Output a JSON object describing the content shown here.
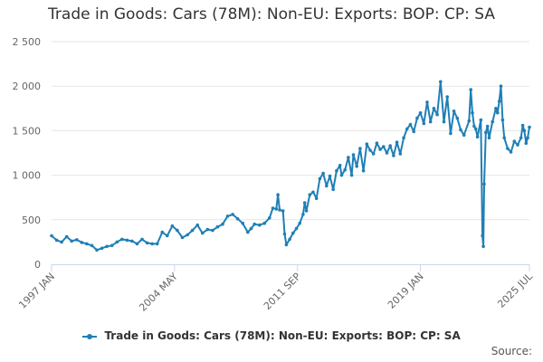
{
  "chart_data": {
    "type": "line",
    "title": "Trade in Goods: Cars (78M): Non-EU: Exports: BOP: CP: SA",
    "xlabel": "",
    "ylabel": "",
    "ylim": [
      0,
      2500
    ],
    "y_ticks": [
      0,
      500,
      1000,
      1500,
      2000,
      2500
    ],
    "y_tick_labels": [
      "0",
      "500",
      "1 000",
      "1 500",
      "2 000",
      "2 500"
    ],
    "x_range": [
      1997.0,
      2025.5
    ],
    "x_ticks": [
      {
        "pos": 1997.0,
        "label": "1997 JAN"
      },
      {
        "pos": 2004.33,
        "label": "2004 MAY"
      },
      {
        "pos": 2011.67,
        "label": "2011 SEP"
      },
      {
        "pos": 2019.0,
        "label": "2019 JAN"
      },
      {
        "pos": 2025.5,
        "label": "2025 JUL"
      }
    ],
    "grid": true,
    "legend_position": "bottom",
    "series": [
      {
        "name": "Trade in Goods: Cars (78M): Non-EU: Exports: BOP: CP: SA",
        "color": "#1f7fb6",
        "points": [
          [
            1997.0,
            320
          ],
          [
            1997.3,
            270
          ],
          [
            1997.6,
            250
          ],
          [
            1997.9,
            310
          ],
          [
            1998.2,
            260
          ],
          [
            1998.5,
            275
          ],
          [
            1998.8,
            245
          ],
          [
            1999.1,
            230
          ],
          [
            1999.4,
            210
          ],
          [
            1999.7,
            160
          ],
          [
            2000.0,
            180
          ],
          [
            2000.3,
            200
          ],
          [
            2000.6,
            210
          ],
          [
            2000.9,
            250
          ],
          [
            2001.2,
            280
          ],
          [
            2001.5,
            270
          ],
          [
            2001.8,
            260
          ],
          [
            2002.1,
            230
          ],
          [
            2002.4,
            280
          ],
          [
            2002.7,
            240
          ],
          [
            2003.0,
            230
          ],
          [
            2003.3,
            230
          ],
          [
            2003.6,
            360
          ],
          [
            2003.9,
            320
          ],
          [
            2004.2,
            430
          ],
          [
            2004.5,
            380
          ],
          [
            2004.8,
            300
          ],
          [
            2005.1,
            330
          ],
          [
            2005.4,
            380
          ],
          [
            2005.7,
            440
          ],
          [
            2006.0,
            350
          ],
          [
            2006.3,
            390
          ],
          [
            2006.6,
            380
          ],
          [
            2006.9,
            420
          ],
          [
            2007.2,
            450
          ],
          [
            2007.5,
            540
          ],
          [
            2007.8,
            560
          ],
          [
            2008.1,
            510
          ],
          [
            2008.4,
            460
          ],
          [
            2008.7,
            360
          ],
          [
            2008.9,
            400
          ],
          [
            2009.1,
            450
          ],
          [
            2009.4,
            440
          ],
          [
            2009.7,
            460
          ],
          [
            2010.0,
            520
          ],
          [
            2010.2,
            630
          ],
          [
            2010.4,
            620
          ],
          [
            2010.5,
            780
          ],
          [
            2010.6,
            610
          ],
          [
            2010.8,
            600
          ],
          [
            2010.9,
            340
          ],
          [
            2011.0,
            220
          ],
          [
            2011.2,
            280
          ],
          [
            2011.4,
            350
          ],
          [
            2011.6,
            400
          ],
          [
            2011.8,
            460
          ],
          [
            2012.0,
            560
          ],
          [
            2012.1,
            690
          ],
          [
            2012.2,
            600
          ],
          [
            2012.4,
            780
          ],
          [
            2012.6,
            810
          ],
          [
            2012.8,
            740
          ],
          [
            2013.0,
            960
          ],
          [
            2013.2,
            1020
          ],
          [
            2013.4,
            880
          ],
          [
            2013.6,
            990
          ],
          [
            2013.8,
            840
          ],
          [
            2014.0,
            1050
          ],
          [
            2014.2,
            1110
          ],
          [
            2014.3,
            1000
          ],
          [
            2014.5,
            1060
          ],
          [
            2014.7,
            1200
          ],
          [
            2014.9,
            1000
          ],
          [
            2015.0,
            1230
          ],
          [
            2015.2,
            1100
          ],
          [
            2015.4,
            1300
          ],
          [
            2015.6,
            1050
          ],
          [
            2015.8,
            1350
          ],
          [
            2016.0,
            1280
          ],
          [
            2016.2,
            1240
          ],
          [
            2016.4,
            1360
          ],
          [
            2016.6,
            1290
          ],
          [
            2016.8,
            1320
          ],
          [
            2017.0,
            1250
          ],
          [
            2017.2,
            1330
          ],
          [
            2017.4,
            1220
          ],
          [
            2017.6,
            1370
          ],
          [
            2017.8,
            1240
          ],
          [
            2018.0,
            1420
          ],
          [
            2018.2,
            1520
          ],
          [
            2018.4,
            1570
          ],
          [
            2018.6,
            1490
          ],
          [
            2018.8,
            1640
          ],
          [
            2019.0,
            1700
          ],
          [
            2019.2,
            1580
          ],
          [
            2019.4,
            1820
          ],
          [
            2019.6,
            1600
          ],
          [
            2019.8,
            1750
          ],
          [
            2020.0,
            1680
          ],
          [
            2020.2,
            2050
          ],
          [
            2020.4,
            1600
          ],
          [
            2020.6,
            1880
          ],
          [
            2020.8,
            1470
          ],
          [
            2021.0,
            1720
          ],
          [
            2021.2,
            1640
          ],
          [
            2021.4,
            1510
          ],
          [
            2021.6,
            1450
          ],
          [
            2021.9,
            1610
          ],
          [
            2022.0,
            1960
          ],
          [
            2022.1,
            1700
          ],
          [
            2022.2,
            1550
          ],
          [
            2022.3,
            1520
          ],
          [
            2022.4,
            1430
          ],
          [
            2022.6,
            1620
          ],
          [
            2022.7,
            320
          ],
          [
            2022.75,
            200
          ],
          [
            2022.8,
            900
          ],
          [
            2022.9,
            1480
          ],
          [
            2023.0,
            1550
          ],
          [
            2023.1,
            1420
          ],
          [
            2023.3,
            1600
          ],
          [
            2023.5,
            1750
          ],
          [
            2023.6,
            1700
          ],
          [
            2023.7,
            1830
          ],
          [
            2023.8,
            2000
          ],
          [
            2023.9,
            1620
          ],
          [
            2024.0,
            1420
          ],
          [
            2024.2,
            1300
          ],
          [
            2024.4,
            1260
          ],
          [
            2024.6,
            1380
          ],
          [
            2024.8,
            1340
          ],
          [
            2025.0,
            1420
          ],
          [
            2025.1,
            1560
          ],
          [
            2025.2,
            1500
          ],
          [
            2025.3,
            1360
          ],
          [
            2025.4,
            1420
          ],
          [
            2025.5,
            1540
          ]
        ]
      }
    ]
  },
  "legend": {
    "label": "Trade in Goods: Cars (78M): Non-EU: Exports: BOP: CP: SA"
  },
  "source_label": "Source:"
}
